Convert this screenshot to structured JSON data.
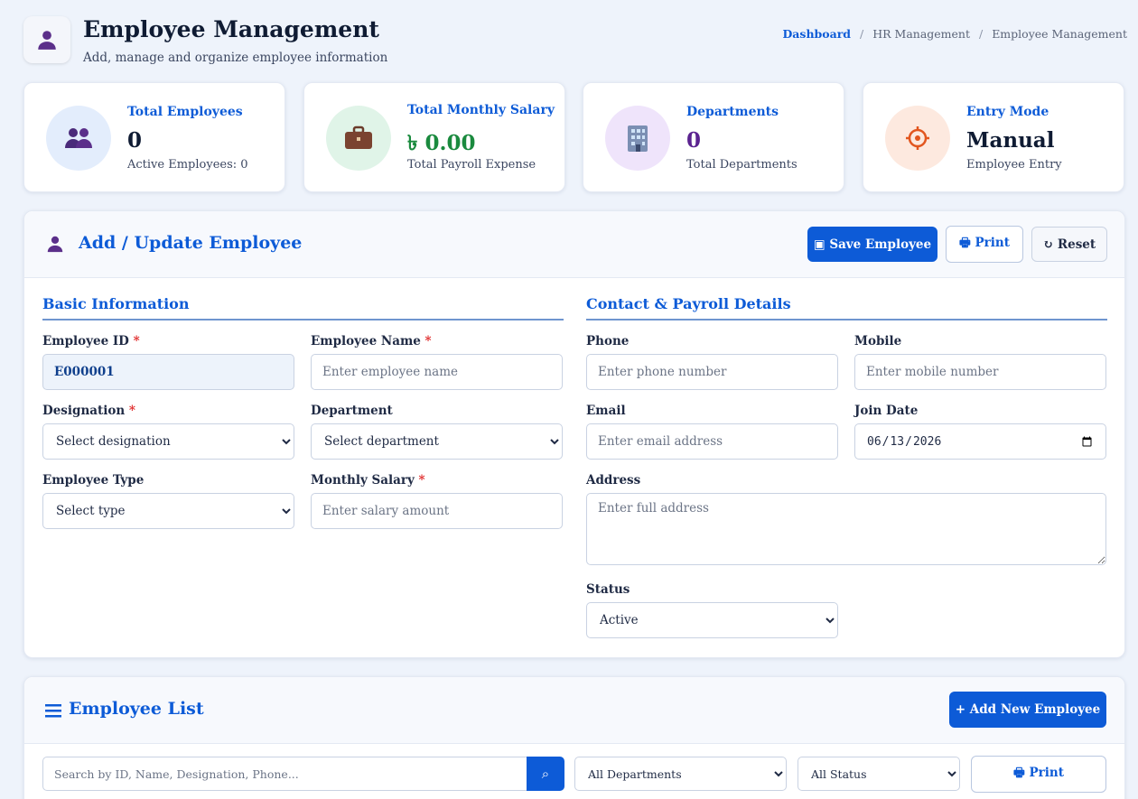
{
  "header": {
    "title": "Employee Management",
    "subtitle": "Add, manage and organize employee information",
    "icon": "user-icon",
    "breadcrumb": [
      {
        "label": "Dashboard"
      },
      {
        "label": "HR Management"
      },
      {
        "label": "Employee Management"
      }
    ],
    "breadcrumb_separator": "/"
  },
  "stats": [
    {
      "label": "Total Employees",
      "value": "0",
      "sub": "Active Employees: 0",
      "icon": "people-icon",
      "value_color": "#0f1b33",
      "bg": "#e3edfc"
    },
    {
      "label": "Total Monthly Salary",
      "value": "৳ 0.00",
      "sub": "Total Payroll Expense",
      "icon": "briefcase-icon",
      "value_color": "#1a8a3e",
      "bg": "#e0f4e8"
    },
    {
      "label": "Departments",
      "value": "0",
      "sub": "Total Departments",
      "icon": "building-icon",
      "value_color": "#5b2390",
      "bg": "#efe4fb"
    },
    {
      "label": "Entry Mode",
      "value": "Manual",
      "sub": "Employee Entry",
      "icon": "target-icon",
      "value_color": "#0f1b33",
      "bg": "#fde9df"
    }
  ],
  "form_panel": {
    "title": "Add / Update Employee",
    "icon": "user-icon",
    "buttons": {
      "save": "▣ Save Employee",
      "print": "🖶 Print",
      "reset": "↻ Reset"
    },
    "basic_section": "Basic Information",
    "contact_section": "Contact & Payroll Details",
    "fields": {
      "employee_id": {
        "label": "Employee ID",
        "value": "E000001"
      },
      "employee_name": {
        "label": "Employee Name",
        "placeholder": "Enter employee name"
      },
      "designation": {
        "label": "Designation",
        "selected": "Select designation"
      },
      "department": {
        "label": "Department",
        "selected": "Select department"
      },
      "employee_type": {
        "label": "Employee Type",
        "selected": "Select type"
      },
      "monthly_salary": {
        "label": "Monthly Salary",
        "placeholder": "Enter salary amount"
      },
      "phone": {
        "label": "Phone",
        "placeholder": "Enter phone number"
      },
      "mobile": {
        "label": "Mobile",
        "placeholder": "Enter mobile number"
      },
      "email": {
        "label": "Email",
        "placeholder": "Enter email address"
      },
      "join_date": {
        "label": "Join Date",
        "value": "2026-06-13"
      },
      "address": {
        "label": "Address",
        "placeholder": "Enter full address"
      },
      "status": {
        "label": "Status",
        "selected": "Active"
      }
    },
    "required_mark": "*"
  },
  "list_panel": {
    "title": "Employee List",
    "icon": "list-icon",
    "add_button": "+ Add New Employee",
    "search_placeholder": "Search by ID, Name, Designation, Phone...",
    "department_filter": "All Departments",
    "status_filter": "All Status",
    "print_button": "🖶 Print"
  },
  "colors": {
    "accent": "#0d5bd7",
    "page_bg": "#eef3fb"
  }
}
